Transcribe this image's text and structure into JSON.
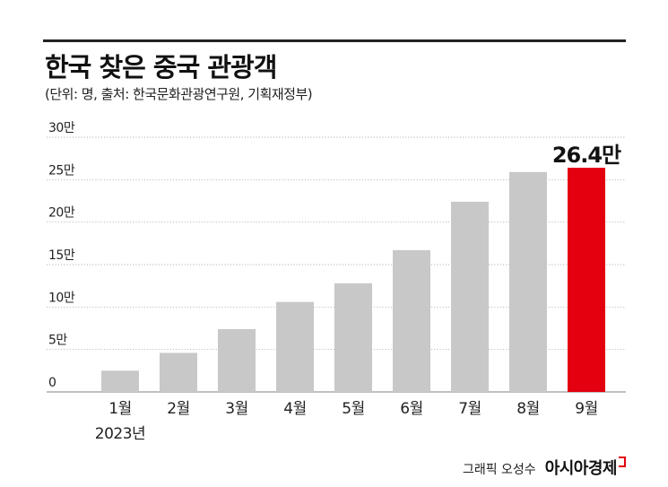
{
  "header": {
    "title": "한국 찾은 중국 관광객",
    "subtitle": "(단위: 명, 출처: 한국문화관광연구원, 기획재정부)"
  },
  "chart_data": {
    "type": "bar",
    "categories": [
      "1월",
      "2월",
      "3월",
      "4월",
      "5월",
      "6월",
      "7월",
      "8월",
      "9월"
    ],
    "year_label": "2023년",
    "values": [
      25000,
      46000,
      74000,
      106000,
      128000,
      167000,
      224000,
      259000,
      264000
    ],
    "highlight_index": 8,
    "highlight_label": "26.4만",
    "ylim": [
      0,
      300000
    ],
    "yticks": [
      {
        "value": 0,
        "label": "0"
      },
      {
        "value": 50000,
        "label": "5만"
      },
      {
        "value": 100000,
        "label": "10만"
      },
      {
        "value": 150000,
        "label": "15만"
      },
      {
        "value": 200000,
        "label": "20만"
      },
      {
        "value": 250000,
        "label": "25만"
      },
      {
        "value": 300000,
        "label": "30만"
      }
    ],
    "grid": true,
    "colors": {
      "bar": "#c8c8c8",
      "highlight": "#e3000f",
      "grid": "#9a9a9a"
    }
  },
  "footer": {
    "credit": "그래픽 오성수",
    "brand": "아시아경제"
  }
}
